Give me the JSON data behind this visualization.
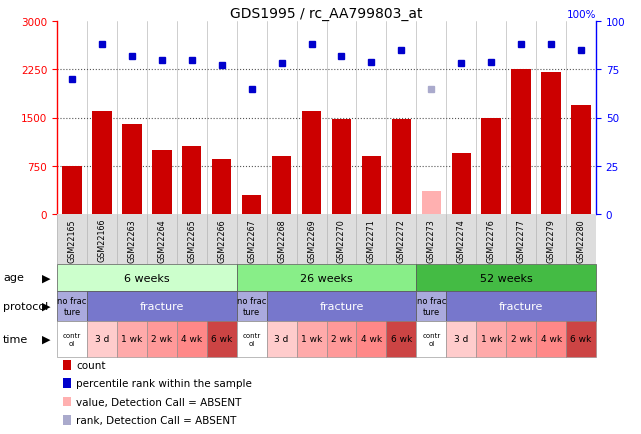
{
  "title": "GDS1995 / rc_AA799803_at",
  "samples": [
    "GSM22165",
    "GSM22166",
    "GSM22263",
    "GSM22264",
    "GSM22265",
    "GSM22266",
    "GSM22267",
    "GSM22268",
    "GSM22269",
    "GSM22270",
    "GSM22271",
    "GSM22272",
    "GSM22273",
    "GSM22274",
    "GSM22276",
    "GSM22277",
    "GSM22279",
    "GSM22280"
  ],
  "counts": [
    750,
    1600,
    1400,
    1000,
    1050,
    850,
    300,
    900,
    1600,
    1480,
    900,
    1480,
    350,
    950,
    1500,
    2250,
    2200,
    1700
  ],
  "percentile_ranks": [
    70,
    88,
    82,
    80,
    80,
    77,
    65,
    78,
    88,
    82,
    79,
    85,
    65,
    78,
    79,
    88,
    88,
    85
  ],
  "absent_count_idx": [
    12
  ],
  "absent_rank_idx": [
    12
  ],
  "ylim_left": [
    0,
    3000
  ],
  "ylim_right": [
    0,
    100
  ],
  "yticks_left": [
    0,
    750,
    1500,
    2250,
    3000
  ],
  "yticks_right": [
    0,
    25,
    50,
    75,
    100
  ],
  "bar_color": "#cc0000",
  "absent_bar_color": "#ffb0b0",
  "dot_color": "#0000cc",
  "absent_dot_color": "#aaaacc",
  "age_groups": [
    {
      "label": "6 weeks",
      "start": 0,
      "end": 6,
      "color": "#ccffcc"
    },
    {
      "label": "26 weeks",
      "start": 6,
      "end": 12,
      "color": "#88ee88"
    },
    {
      "label": "52 weeks",
      "start": 12,
      "end": 18,
      "color": "#44bb44"
    }
  ],
  "protocol_groups": [
    {
      "label": "no frac\nture",
      "start": 0,
      "end": 1,
      "color": "#aaaadd"
    },
    {
      "label": "fracture",
      "start": 1,
      "end": 6,
      "color": "#7777cc"
    },
    {
      "label": "no frac\nture",
      "start": 6,
      "end": 7,
      "color": "#aaaadd"
    },
    {
      "label": "fracture",
      "start": 7,
      "end": 12,
      "color": "#7777cc"
    },
    {
      "label": "no frac\nture",
      "start": 12,
      "end": 13,
      "color": "#aaaadd"
    },
    {
      "label": "fracture",
      "start": 13,
      "end": 18,
      "color": "#7777cc"
    }
  ],
  "time_groups": [
    {
      "label": "contr\nol",
      "start": 0,
      "end": 1,
      "color": "#ffffff"
    },
    {
      "label": "3 d",
      "start": 1,
      "end": 2,
      "color": "#ffcccc"
    },
    {
      "label": "1 wk",
      "start": 2,
      "end": 3,
      "color": "#ffaaaa"
    },
    {
      "label": "2 wk",
      "start": 3,
      "end": 4,
      "color": "#ff9999"
    },
    {
      "label": "4 wk",
      "start": 4,
      "end": 5,
      "color": "#ff8888"
    },
    {
      "label": "6 wk",
      "start": 5,
      "end": 6,
      "color": "#cc4444"
    },
    {
      "label": "contr\nol",
      "start": 6,
      "end": 7,
      "color": "#ffffff"
    },
    {
      "label": "3 d",
      "start": 7,
      "end": 8,
      "color": "#ffcccc"
    },
    {
      "label": "1 wk",
      "start": 8,
      "end": 9,
      "color": "#ffaaaa"
    },
    {
      "label": "2 wk",
      "start": 9,
      "end": 10,
      "color": "#ff9999"
    },
    {
      "label": "4 wk",
      "start": 10,
      "end": 11,
      "color": "#ff8888"
    },
    {
      "label": "6 wk",
      "start": 11,
      "end": 12,
      "color": "#cc4444"
    },
    {
      "label": "contr\nol",
      "start": 12,
      "end": 13,
      "color": "#ffffff"
    },
    {
      "label": "3 d",
      "start": 13,
      "end": 14,
      "color": "#ffcccc"
    },
    {
      "label": "1 wk",
      "start": 14,
      "end": 15,
      "color": "#ffaaaa"
    },
    {
      "label": "2 wk",
      "start": 15,
      "end": 16,
      "color": "#ff9999"
    },
    {
      "label": "4 wk",
      "start": 16,
      "end": 17,
      "color": "#ff8888"
    },
    {
      "label": "6 wk",
      "start": 17,
      "end": 18,
      "color": "#cc4444"
    }
  ],
  "legend_items": [
    {
      "label": "count",
      "color": "#cc0000"
    },
    {
      "label": "percentile rank within the sample",
      "color": "#0000cc"
    },
    {
      "label": "value, Detection Call = ABSENT",
      "color": "#ffb0b0"
    },
    {
      "label": "rank, Detection Call = ABSENT",
      "color": "#aaaacc"
    }
  ]
}
